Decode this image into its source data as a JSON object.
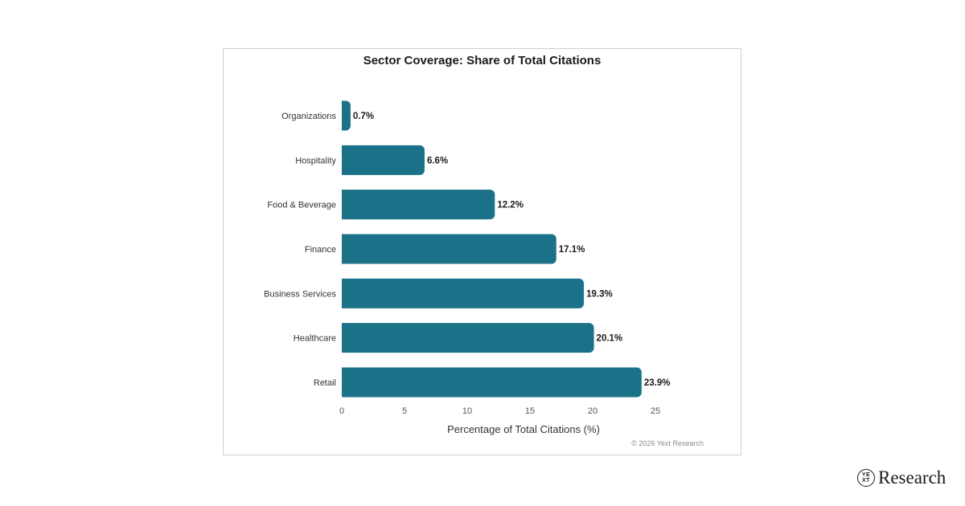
{
  "chart_data": {
    "type": "bar",
    "orientation": "horizontal",
    "title": "Sector Coverage: Share of Total Citations",
    "xlabel": "Percentage of Total Citations (%)",
    "ylabel": "",
    "categories": [
      "Organizations",
      "Hospitality",
      "Food & Beverage",
      "Finance",
      "Business Services",
      "Healthcare",
      "Retail"
    ],
    "values": [
      0.7,
      6.6,
      12.2,
      17.1,
      19.3,
      20.1,
      23.9
    ],
    "value_labels": [
      "0.7%",
      "6.6%",
      "12.2%",
      "17.1%",
      "19.3%",
      "20.1%",
      "23.9%"
    ],
    "xlim": [
      0,
      25
    ],
    "xticks": [
      0,
      5,
      10,
      15,
      20,
      25
    ],
    "grid": false,
    "bar_color": "#1b7188"
  },
  "footer": {
    "copyright": "© 2026 Yext Research"
  },
  "brand": {
    "badge_top": "YE",
    "badge_bottom": "XT",
    "wordmark": "Research"
  }
}
